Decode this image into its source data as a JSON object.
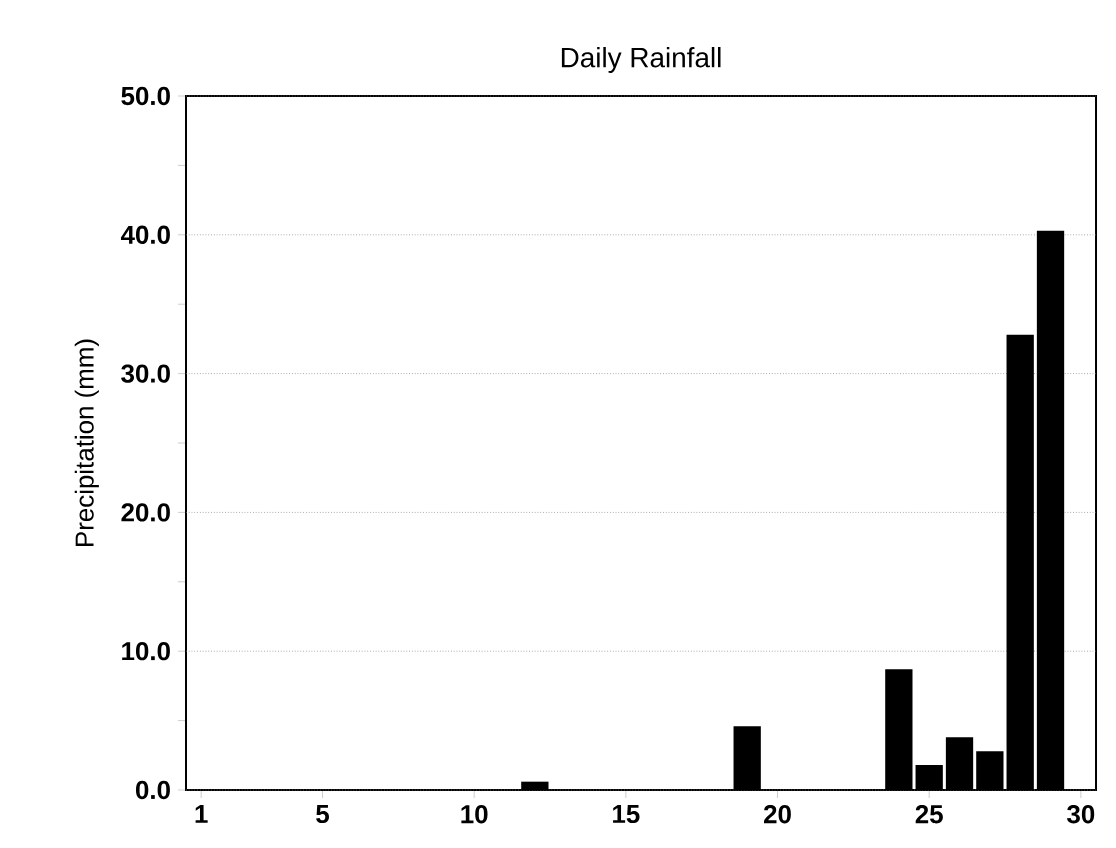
{
  "chart_data": {
    "type": "bar",
    "title": "Daily Rainfall",
    "ylabel": "Precipitation (mm)",
    "x": [
      12,
      19,
      24,
      25,
      26,
      27,
      28,
      29
    ],
    "values": [
      0.6,
      4.6,
      8.7,
      1.8,
      3.8,
      2.8,
      32.8,
      40.3
    ],
    "color": "#000000",
    "xlim": [
      0.5,
      30.5
    ],
    "xticks": [
      1,
      5,
      10,
      15,
      20,
      25,
      30
    ],
    "ylim": [
      0,
      50
    ],
    "yticks": [
      {
        "value": 0,
        "label": "0.0"
      },
      {
        "value": 5,
        "label": null
      },
      {
        "value": 10,
        "label": "10.0"
      },
      {
        "value": 15,
        "label": null
      },
      {
        "value": 20,
        "label": "20.0"
      },
      {
        "value": 25,
        "label": null
      },
      {
        "value": 30,
        "label": "30.0"
      },
      {
        "value": 35,
        "label": null
      },
      {
        "value": 40,
        "label": "40.0"
      },
      {
        "value": 45,
        "label": null
      },
      {
        "value": 50,
        "label": "50.0"
      }
    ],
    "grid": "y"
  }
}
